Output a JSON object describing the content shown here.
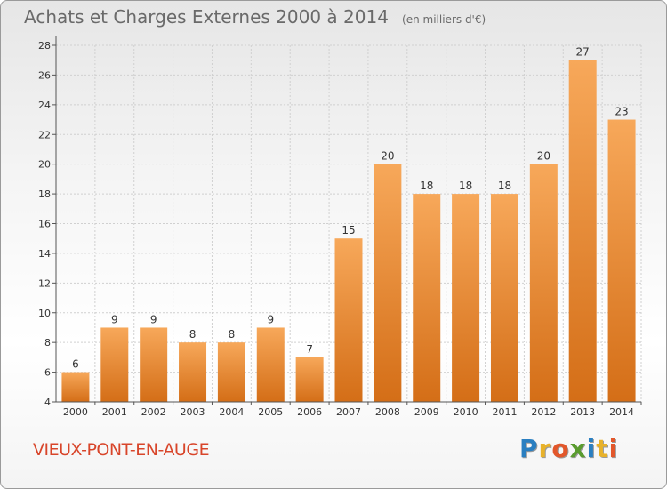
{
  "header": {
    "title": "Achats et Charges Externes 2000 à 2014",
    "subtitle": "(en milliers d'€)"
  },
  "footer": {
    "commune": "VIEUX-PONT-EN-AUGE",
    "logo_letters": [
      "P",
      "r",
      "o",
      "x",
      "i",
      "t",
      "i"
    ],
    "logo_colors": [
      "#2a7fc1",
      "#e8b22a",
      "#e2572b",
      "#5a9c2f",
      "#2a7fc1",
      "#e8b22a",
      "#e2572b"
    ]
  },
  "chart_data": {
    "type": "bar",
    "title": "Achats et Charges Externes 2000 à 2014",
    "subtitle": "(en milliers d'€)",
    "categories": [
      "2000",
      "2001",
      "2002",
      "2003",
      "2004",
      "2005",
      "2006",
      "2007",
      "2008",
      "2009",
      "2010",
      "2011",
      "2012",
      "2013",
      "2014"
    ],
    "values": [
      6,
      9,
      9,
      8,
      8,
      9,
      7,
      15,
      20,
      18,
      18,
      18,
      20,
      27,
      23
    ],
    "yticks": [
      4,
      6,
      8,
      10,
      12,
      14,
      16,
      18,
      20,
      22,
      24,
      26,
      28
    ],
    "ylim": [
      4,
      28
    ],
    "grid": true,
    "bar_color": "#f0963a",
    "bar_color_dark": "#d46e17"
  }
}
